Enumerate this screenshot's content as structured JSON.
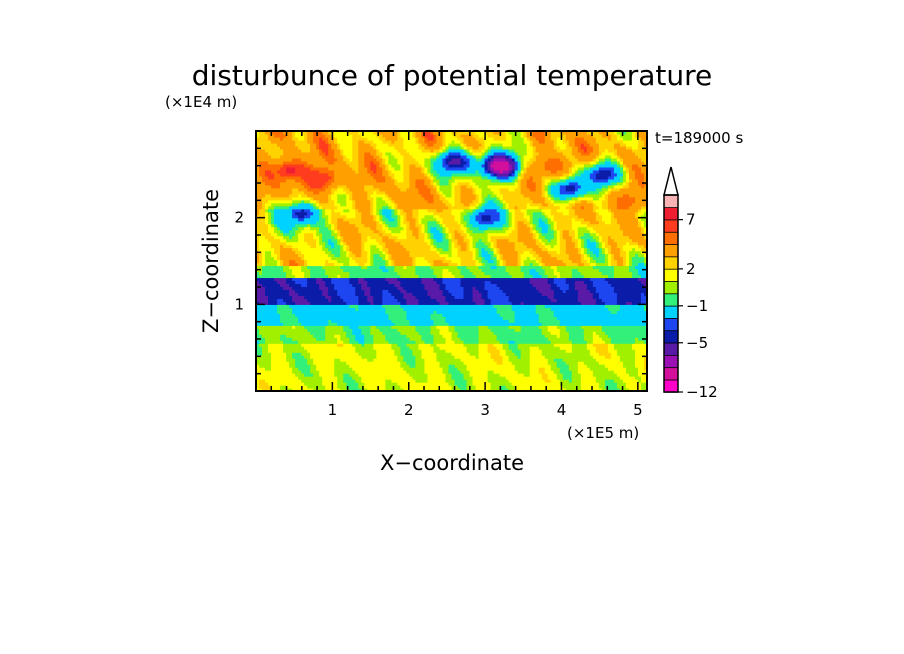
{
  "chart_data": {
    "type": "heatmap",
    "title": "disturbunce of potential temperature",
    "xlabel": "X−coordinate",
    "ylabel": "Z−coordinate",
    "x_unit": "(×1E5 m)",
    "y_unit": "(×1E4 m)",
    "time_label": "t=189000 s",
    "xlim": [
      0,
      5.12
    ],
    "ylim": [
      0,
      3.0
    ],
    "x_ticks": [
      1,
      2,
      3,
      4,
      5
    ],
    "x_tick_labels": [
      "1",
      "2",
      "3",
      "4",
      "5"
    ],
    "y_ticks": [
      1,
      2
    ],
    "y_tick_labels": [
      "1",
      "2"
    ],
    "colorbar": {
      "levels": [
        -12,
        -10,
        -8,
        -7,
        -5,
        -4,
        -3,
        -1,
        0,
        1,
        2,
        3,
        5,
        6,
        7,
        8,
        9
      ],
      "labeled_levels": [
        -12,
        -5,
        -1,
        2,
        7
      ],
      "tick_labels": [
        "−12",
        "−5",
        "−1",
        "2",
        "7"
      ],
      "colors": [
        "#ff00c8",
        "#d2109c",
        "#9a10b4",
        "#5a1aa8",
        "#0a1ca8",
        "#1e46f0",
        "#00d2ff",
        "#32f07a",
        "#a0f000",
        "#ffff00",
        "#ffd200",
        "#ffa000",
        "#ff6e00",
        "#ff3c1e",
        "#f01e32",
        "#f8b4b4"
      ],
      "extend": "max"
    },
    "bands": [
      {
        "z_range": [
          0.0,
          0.55
        ],
        "value": 1.0,
        "description_values": [
          0.5,
          1.5
        ]
      },
      {
        "z_range": [
          0.55,
          0.75
        ],
        "value": 0.0
      },
      {
        "z_range": [
          0.75,
          1.0
        ],
        "value": -1.5
      },
      {
        "z_range": [
          1.0,
          1.3
        ],
        "value": -4.5
      },
      {
        "z_range": [
          1.3,
          1.45
        ],
        "value": 0.0
      },
      {
        "z_range": [
          1.45,
          2.1
        ],
        "value": 2.0
      },
      {
        "z_range": [
          2.1,
          3.0
        ],
        "value": 3.0
      }
    ],
    "features": [
      {
        "x": 0.45,
        "z": 2.55,
        "value": 7.5
      },
      {
        "x": 0.85,
        "z": 2.45,
        "value": 7.0
      },
      {
        "x": 2.6,
        "z": 2.65,
        "value": -5.5
      },
      {
        "x": 3.2,
        "z": 2.6,
        "value": -10
      },
      {
        "x": 4.1,
        "z": 2.35,
        "value": -5.0
      },
      {
        "x": 3.9,
        "z": 2.6,
        "value": 6.0
      },
      {
        "x": 4.55,
        "z": 2.5,
        "value": -5.0
      },
      {
        "x": 3.0,
        "z": 2.0,
        "value": -4.5
      },
      {
        "x": 0.6,
        "z": 2.05,
        "value": -4.5
      },
      {
        "x": 4.85,
        "z": 2.2,
        "value": 5.5
      }
    ]
  }
}
